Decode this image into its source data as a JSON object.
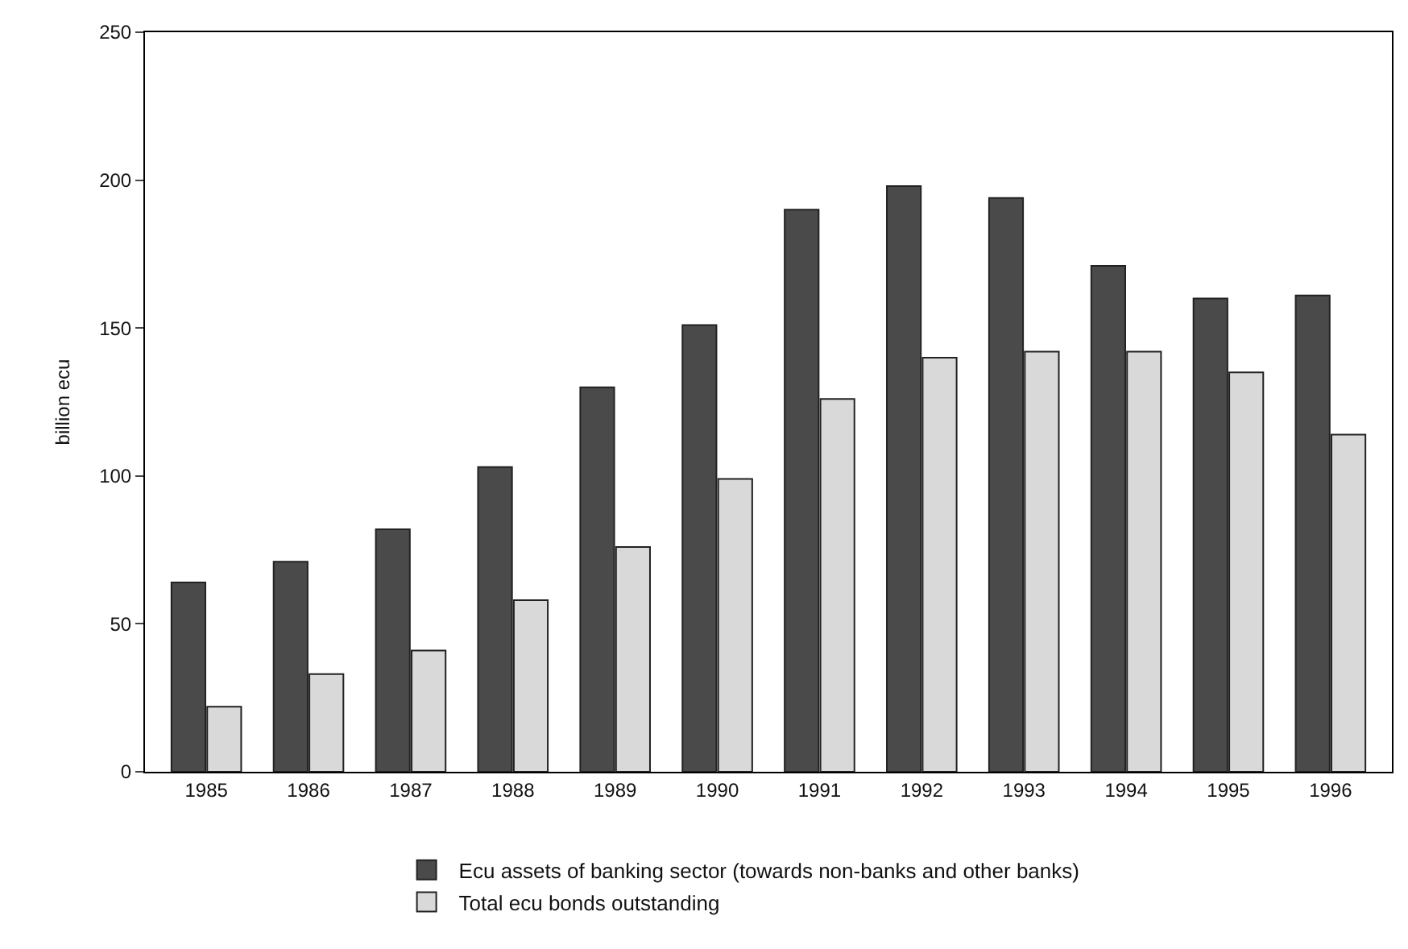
{
  "chart_data": {
    "type": "bar",
    "ylabel": "billion ecu",
    "categories": [
      "1985",
      "1986",
      "1987",
      "1988",
      "1989",
      "1990",
      "1991",
      "1992",
      "1993",
      "1994",
      "1995",
      "1996"
    ],
    "series": [
      {
        "name": "Ecu assets of banking sector (towards non-banks and other banks)",
        "color": "#4a4a4a",
        "values": [
          64,
          71,
          82,
          103,
          130,
          151,
          190,
          198,
          194,
          171,
          160,
          161
        ]
      },
      {
        "name": "Total ecu bonds outstanding",
        "color": "#d9d9d9",
        "values": [
          22,
          33,
          41,
          58,
          76,
          99,
          126,
          140,
          142,
          142,
          135,
          114
        ]
      }
    ],
    "ylim": [
      0,
      250
    ],
    "yticks": [
      0,
      50,
      100,
      150,
      200,
      250
    ],
    "grid": false,
    "legend": "bottom"
  }
}
